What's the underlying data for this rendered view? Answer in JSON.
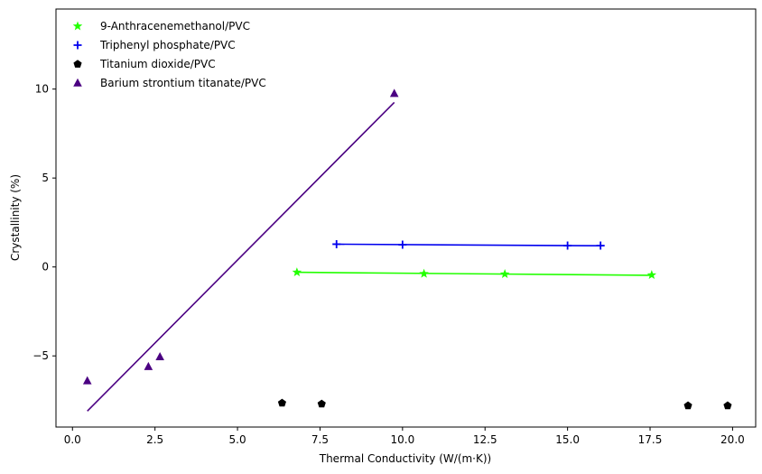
{
  "chart_data": {
    "type": "scatter",
    "xlabel": "Thermal Conductivity (W/(m·K))",
    "ylabel": "Crystallinity (%)",
    "xlim": [
      -0.5,
      20.7
    ],
    "ylim": [
      -9.0,
      14.5
    ],
    "xticks": [
      0.0,
      2.5,
      5.0,
      7.5,
      10.0,
      12.5,
      15.0,
      17.5,
      20.0
    ],
    "xtick_labels": [
      "0.0",
      "2.5",
      "5.0",
      "7.5",
      "10.0",
      "12.5",
      "15.0",
      "17.5",
      "20.0"
    ],
    "yticks": [
      -5,
      0,
      5,
      10
    ],
    "ytick_labels": [
      "−5",
      "0",
      "5",
      "10"
    ],
    "grid": false,
    "legend_position": "top-left",
    "series": [
      {
        "name": "9-Anthracenemethanol/PVC",
        "marker": "star",
        "color": "#22ff00",
        "x": [
          6.8,
          10.65,
          13.1,
          17.55
        ],
        "y": [
          -0.3,
          -0.38,
          -0.4,
          -0.45
        ],
        "fit_line": {
          "x": [
            6.8,
            17.55
          ],
          "y": [
            -0.3,
            -0.47
          ]
        }
      },
      {
        "name": "Triphenyl phosphate/PVC",
        "marker": "plus",
        "color": "#0000ee",
        "x": [
          8.0,
          10.0,
          15.0,
          16.0
        ],
        "y": [
          1.28,
          1.25,
          1.2,
          1.2
        ],
        "fit_line": {
          "x": [
            8.0,
            16.0
          ],
          "y": [
            1.28,
            1.19
          ]
        }
      },
      {
        "name": "Titanium dioxide/PVC",
        "marker": "pentagon",
        "color": "#000000",
        "x": [
          6.35,
          7.55,
          18.65,
          19.85
        ],
        "y": [
          -7.65,
          -7.7,
          -7.8,
          -7.8
        ]
      },
      {
        "name": "Barium strontium titanate/PVC",
        "marker": "triangle",
        "color": "#4b0082",
        "x": [
          0.45,
          2.3,
          2.65,
          9.75
        ],
        "y": [
          -6.4,
          -5.6,
          -5.05,
          9.75
        ],
        "fit_line": {
          "x": [
            0.45,
            9.75
          ],
          "y": [
            -8.1,
            9.25
          ]
        }
      }
    ]
  }
}
